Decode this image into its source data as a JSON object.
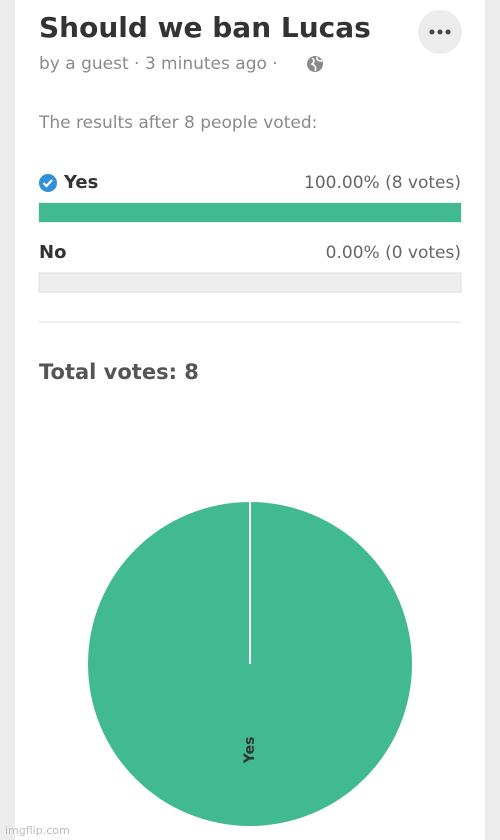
{
  "header": {
    "title": "Should we ban Lucas",
    "byline": "by a guest · 3 minutes ago ·"
  },
  "summary": "The results after 8 people voted:",
  "options": [
    {
      "label": "Yes",
      "result": "100.00% (8 votes)",
      "votes": 8,
      "color": "#41b991"
    },
    {
      "label": "No",
      "result": "0.00% (0 votes)",
      "votes": 0,
      "color": "#41b991"
    }
  ],
  "total": "Total votes: 8",
  "chart_data": {
    "type": "pie",
    "categories": [
      "Yes",
      "No"
    ],
    "values": [
      8,
      0
    ],
    "colors": [
      "#41b991",
      "#41b991"
    ]
  },
  "watermark": "imgflip.com"
}
